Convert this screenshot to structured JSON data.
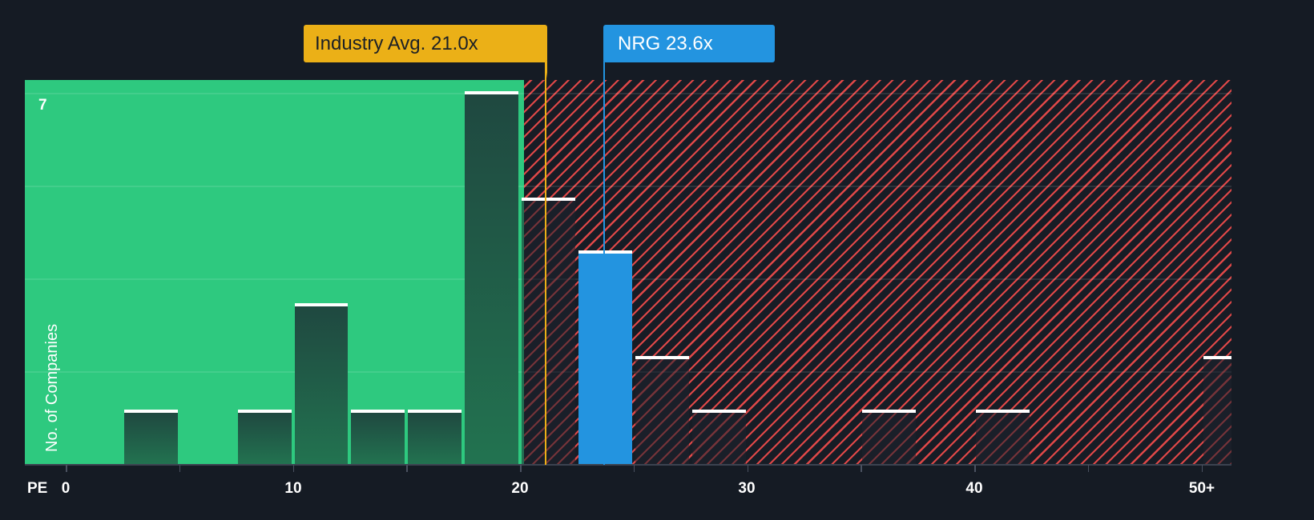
{
  "chart_data": {
    "type": "bar",
    "title": "",
    "xlabel": "PE",
    "ylabel": "No. of Companies",
    "x_ticks": [
      "0",
      "10",
      "20",
      "30",
      "40",
      "50+"
    ],
    "y_max_label": "7",
    "ylim": [
      0,
      7
    ],
    "xlim": [
      0,
      51.5
    ],
    "bin_width": 2.5,
    "bins": [
      {
        "start": 2.5,
        "end": 5,
        "count": 1,
        "zone": "green"
      },
      {
        "start": 7.5,
        "end": 10,
        "count": 1,
        "zone": "green"
      },
      {
        "start": 10,
        "end": 12.5,
        "count": 3,
        "zone": "green"
      },
      {
        "start": 12.5,
        "end": 15,
        "count": 1,
        "zone": "green"
      },
      {
        "start": 15,
        "end": 17.5,
        "count": 1,
        "zone": "green"
      },
      {
        "start": 17.5,
        "end": 20,
        "count": 7,
        "zone": "green"
      },
      {
        "start": 20,
        "end": 22.5,
        "count": 5,
        "zone": "red"
      },
      {
        "start": 22.5,
        "end": 25,
        "count": 4,
        "zone": "red",
        "highlight": true
      },
      {
        "start": 25,
        "end": 27.5,
        "count": 2,
        "zone": "red"
      },
      {
        "start": 27.5,
        "end": 30,
        "count": 1,
        "zone": "red"
      },
      {
        "start": 35,
        "end": 37.5,
        "count": 1,
        "zone": "red"
      },
      {
        "start": 40,
        "end": 42.5,
        "count": 1,
        "zone": "red"
      },
      {
        "start": 50,
        "end": 51.5,
        "count": 2,
        "zone": "red",
        "label": "50+"
      }
    ],
    "zones": {
      "green_until": 20.25,
      "red_from": 20.25
    },
    "markers": [
      {
        "name": "Industry Avg.",
        "value": 21.0,
        "label": "Industry Avg. 21.0x",
        "color": "#ebb017"
      },
      {
        "name": "NRG",
        "value": 23.6,
        "label": "NRG 23.6x",
        "color": "#2394e0"
      }
    ],
    "grid": true,
    "legend": "none"
  },
  "labels": {
    "industry_callout": "Industry Avg. 21.0x",
    "company_callout": "NRG 23.6x",
    "y_axis_title": "No. of Companies",
    "y_max": "7",
    "x_axis_prefix": "PE",
    "x_ticks": [
      "0",
      "10",
      "20",
      "30",
      "40",
      "50+"
    ]
  },
  "colors": {
    "background": "#151b24",
    "undervalued_zone": "#2ec97f",
    "overvalued_hatch": "#e04848",
    "industry_marker": "#ebb017",
    "company_marker": "#2394e0"
  }
}
